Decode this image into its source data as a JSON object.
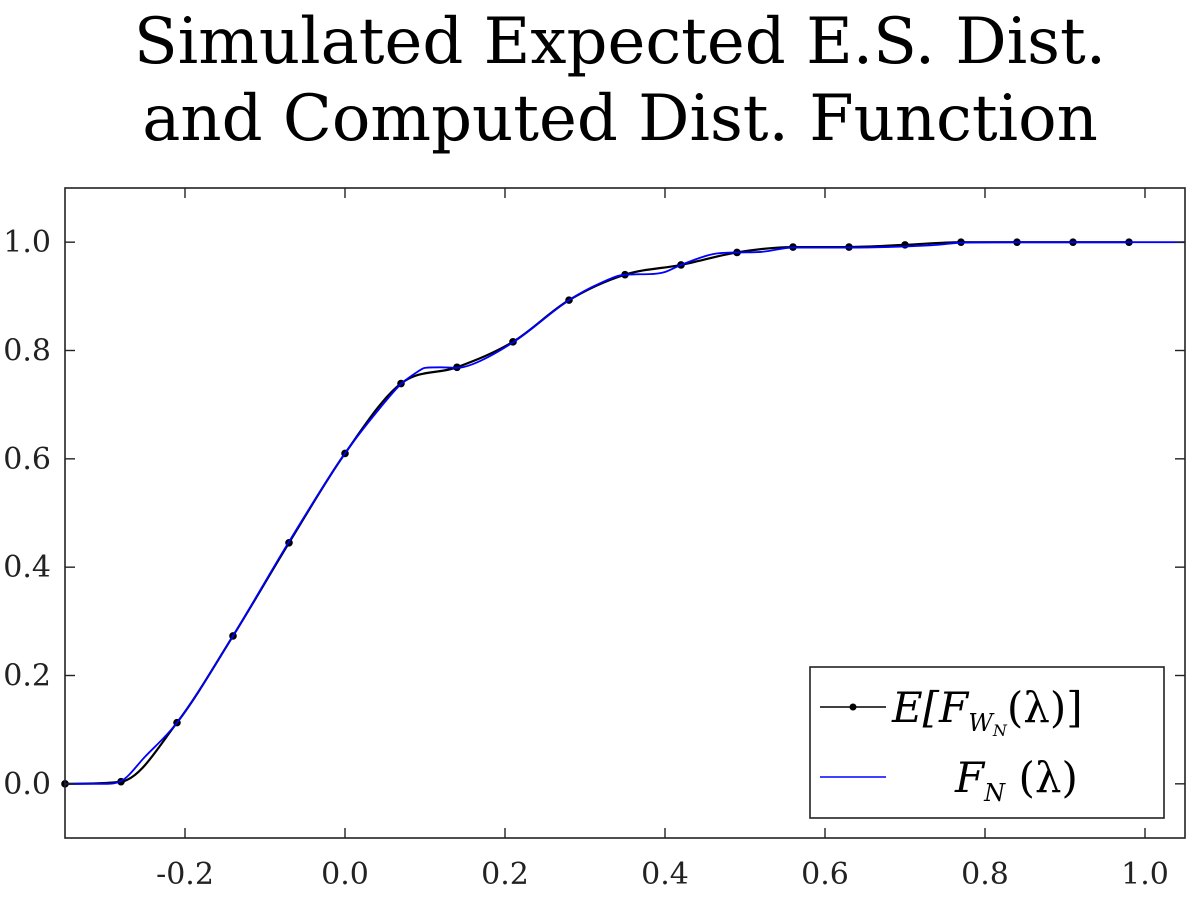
{
  "chart_data": {
    "type": "line",
    "title": [
      "Simulated Expected E.S. Dist.",
      "and Computed Dist. Function"
    ],
    "xlabel": "",
    "ylabel": "",
    "xlim": [
      -0.35,
      1.05
    ],
    "ylim": [
      -0.1,
      1.1
    ],
    "x_ticks": [
      -0.2,
      0.0,
      0.2,
      0.4,
      0.6,
      0.8,
      1.0
    ],
    "x_tick_labels": [
      "-0.2",
      "0.0",
      "0.2",
      "0.4",
      "0.6",
      "0.8",
      "1.0"
    ],
    "y_ticks": [
      0.0,
      0.2,
      0.4,
      0.6,
      0.8,
      1.0
    ],
    "y_tick_labels": [
      "0.0",
      "0.2",
      "0.4",
      "0.6",
      "0.8",
      "1.0"
    ],
    "grid": false,
    "legend_position": "bottom-right",
    "series": [
      {
        "name": "E[F_{W_N}(λ)]",
        "color": "#000000",
        "marker": "dot",
        "x": [
          -0.35,
          -0.28,
          -0.21,
          -0.14,
          -0.07,
          0.0,
          0.07,
          0.14,
          0.21,
          0.28,
          0.35,
          0.42,
          0.49,
          0.56,
          0.63,
          0.7,
          0.77,
          0.84,
          0.91,
          0.98
        ],
        "y": [
          0.0,
          0.004,
          0.113,
          0.273,
          0.445,
          0.61,
          0.739,
          0.769,
          0.816,
          0.893,
          0.94,
          0.958,
          0.981,
          0.991,
          0.991,
          0.995,
          1.0,
          1.0,
          1.0,
          1.0
        ]
      },
      {
        "name": "F_N (λ)",
        "color": "#0000ff",
        "marker": "none",
        "x": [
          -0.35,
          -0.3,
          -0.28,
          -0.25,
          -0.21,
          -0.14,
          -0.07,
          0.0,
          0.05,
          0.07,
          0.09,
          0.1,
          0.12,
          0.14,
          0.16,
          0.21,
          0.28,
          0.32,
          0.35,
          0.38,
          0.4,
          0.42,
          0.46,
          0.49,
          0.52,
          0.56,
          0.63,
          0.7,
          0.74,
          0.77,
          0.84,
          0.91,
          0.98,
          1.05
        ],
        "y": [
          0.0,
          0.0,
          0.005,
          0.05,
          0.113,
          0.273,
          0.447,
          0.61,
          0.705,
          0.738,
          0.76,
          0.768,
          0.769,
          0.768,
          0.775,
          0.815,
          0.893,
          0.925,
          0.94,
          0.941,
          0.945,
          0.958,
          0.978,
          0.981,
          0.982,
          0.99,
          0.99,
          0.992,
          0.995,
          0.999,
          1.0,
          1.0,
          1.0,
          1.0
        ]
      }
    ]
  },
  "legend": {
    "items": [
      {
        "prefix": "E[F",
        "sub": "W",
        "subsub": "N",
        "suffix": "(λ)]"
      },
      {
        "prefix": "F",
        "sub": "N",
        "suffix": " (λ)"
      }
    ]
  }
}
